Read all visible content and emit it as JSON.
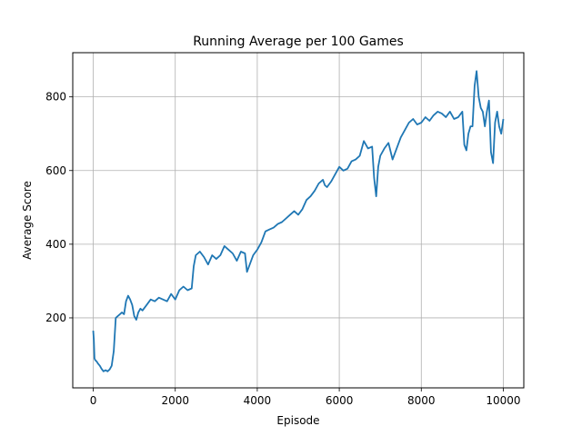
{
  "chart_data": {
    "type": "line",
    "title": "Running Average per 100 Games",
    "xlabel": "Episode",
    "ylabel": "Average Score",
    "xlim": [
      -500,
      10500
    ],
    "ylim": [
      10,
      920
    ],
    "xticks": [
      0,
      2000,
      4000,
      6000,
      8000,
      10000
    ],
    "yticks": [
      200,
      400,
      600,
      800
    ],
    "xtick_labels": [
      "0",
      "2000",
      "4000",
      "6000",
      "8000",
      "10000"
    ],
    "ytick_labels": [
      "200",
      "400",
      "600",
      "800"
    ],
    "grid": true,
    "line_color": "#1f77b4",
    "series": [
      {
        "x": [
          0,
          15,
          30,
          50,
          80,
          120,
          160,
          200,
          250,
          300,
          350,
          400,
          450,
          500,
          550,
          600,
          650,
          700,
          750,
          800,
          850,
          900,
          950,
          1000,
          1050,
          1100,
          1150,
          1200,
          1300,
          1400,
          1500,
          1600,
          1700,
          1800,
          1900,
          2000,
          2100,
          2200,
          2300,
          2400,
          2450,
          2500,
          2600,
          2700,
          2800,
          2900,
          3000,
          3100,
          3200,
          3300,
          3400,
          3500,
          3600,
          3700,
          3750,
          3800,
          3900,
          4000,
          4100,
          4200,
          4300,
          4400,
          4500,
          4600,
          4700,
          4800,
          4900,
          5000,
          5100,
          5200,
          5300,
          5400,
          5500,
          5600,
          5650,
          5700,
          5800,
          5900,
          6000,
          6100,
          6200,
          6300,
          6400,
          6500,
          6600,
          6700,
          6800,
          6850,
          6900,
          6950,
          7000,
          7100,
          7200,
          7300,
          7400,
          7500,
          7600,
          7700,
          7800,
          7900,
          8000,
          8100,
          8200,
          8300,
          8400,
          8500,
          8600,
          8700,
          8800,
          8900,
          9000,
          9050,
          9100,
          9150,
          9200,
          9250,
          9300,
          9350,
          9400,
          9450,
          9500,
          9550,
          9600,
          9650,
          9700,
          9750,
          9800,
          9850,
          9900,
          9950,
          10000
        ],
        "values": [
          165,
          140,
          90,
          85,
          82,
          75,
          70,
          62,
          55,
          58,
          55,
          60,
          70,
          110,
          200,
          205,
          210,
          215,
          210,
          245,
          260,
          250,
          235,
          205,
          195,
          215,
          225,
          220,
          235,
          250,
          245,
          255,
          250,
          245,
          265,
          250,
          275,
          285,
          275,
          280,
          340,
          370,
          380,
          365,
          345,
          370,
          360,
          370,
          395,
          385,
          375,
          355,
          380,
          375,
          325,
          340,
          370,
          385,
          405,
          435,
          440,
          445,
          455,
          460,
          470,
          480,
          490,
          480,
          495,
          520,
          530,
          545,
          565,
          575,
          560,
          555,
          570,
          590,
          610,
          600,
          605,
          625,
          630,
          640,
          680,
          660,
          665,
          580,
          530,
          610,
          640,
          660,
          675,
          630,
          660,
          690,
          710,
          730,
          740,
          725,
          730,
          745,
          735,
          750,
          760,
          755,
          745,
          760,
          740,
          745,
          760,
          670,
          655,
          700,
          720,
          720,
          830,
          870,
          800,
          770,
          760,
          720,
          760,
          790,
          650,
          620,
          730,
          760,
          720,
          700,
          740
        ]
      }
    ]
  }
}
